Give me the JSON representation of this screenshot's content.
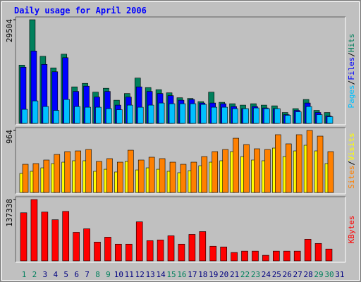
{
  "chart_data": {
    "type": "bar",
    "title": "Daily usage for April 2006",
    "categories": [
      "1",
      "2",
      "3",
      "4",
      "5",
      "6",
      "7",
      "8",
      "9",
      "10",
      "11",
      "12",
      "13",
      "14",
      "15",
      "16",
      "17",
      "18",
      "19",
      "20",
      "21",
      "22",
      "23",
      "24",
      "25",
      "26",
      "27",
      "28",
      "29",
      "30",
      "31"
    ],
    "category_colors": [
      "#00805c",
      "#00805c",
      "#000080",
      "#000080",
      "#000080",
      "#000080",
      "#000080",
      "#00805c",
      "#00805c",
      "#000080",
      "#000080",
      "#000080",
      "#000080",
      "#000080",
      "#00805c",
      "#00805c",
      "#000080",
      "#000080",
      "#000080",
      "#000080",
      "#000080",
      "#00805c",
      "#00805c",
      "#000080",
      "#000080",
      "#000080",
      "#000080",
      "#000080",
      "#00805c",
      "#00805c",
      "#000080"
    ],
    "legend_separator": "/",
    "panels": [
      {
        "ylim": [
          0,
          29504
        ],
        "yticks": [
          29504
        ],
        "series": [
          {
            "name": "Hits",
            "color": "#00805c",
            "values": [
              16600,
              29504,
              19100,
              15800,
              19700,
              10400,
              11400,
              8900,
              10000,
              6600,
              8500,
              12900,
              10200,
              9600,
              8700,
              7300,
              7100,
              6200,
              8900,
              6000,
              5600,
              5200,
              5600,
              5200,
              5000,
              3100,
              4200,
              6800,
              3700,
              3100,
              null
            ]
          },
          {
            "name": "Files",
            "color": "#0000ff",
            "values": [
              16000,
              20600,
              16800,
              14700,
              18700,
              9100,
              10600,
              7500,
              9100,
              5200,
              7500,
              10400,
              9100,
              8500,
              7900,
              6600,
              6800,
              5800,
              5800,
              5600,
              4800,
              4200,
              4800,
              4400,
              4200,
              2500,
              3700,
              5800,
              3100,
              2100,
              null
            ]
          },
          {
            "name": "Pages",
            "color": "#00c0ff",
            "values": [
              4000,
              6400,
              4800,
              3700,
              6800,
              4800,
              4600,
              4600,
              4200,
              3900,
              5200,
              4600,
              5200,
              5800,
              5600,
              5600,
              5600,
              5400,
              4600,
              4600,
              4200,
              4200,
              4400,
              4200,
              4200,
              2300,
              3300,
              4800,
              2500,
              1900,
              null
            ]
          }
        ]
      },
      {
        "ylim": [
          0,
          964
        ],
        "yticks": [
          964
        ],
        "series": [
          {
            "name": "Visits",
            "color": "#ffff00",
            "values": [
              296,
              329,
              383,
              449,
              471,
              493,
              493,
              329,
              361,
              318,
              482,
              350,
              383,
              361,
              329,
              307,
              339,
              416,
              471,
              493,
              635,
              558,
              504,
              493,
              690,
              558,
              646,
              734,
              646,
              449,
              null
            ]
          },
          {
            "name": "Sites",
            "color": "#ff8000",
            "values": [
              438,
              449,
              504,
              591,
              635,
              646,
              668,
              482,
              526,
              471,
              657,
              504,
              548,
              526,
              471,
              438,
              471,
              558,
              635,
              668,
              843,
              745,
              679,
              668,
              898,
              756,
              898,
              964,
              876,
              635,
              null
            ]
          }
        ]
      },
      {
        "ylim": [
          0,
          137338
        ],
        "yticks": [
          137338
        ],
        "series": [
          {
            "name": "KBytes",
            "color": "#ff0000",
            "values": [
              107688,
              137338,
              109249,
              92081,
              110810,
              63989,
              71792,
              42139,
              53064,
              37457,
              37457,
              87399,
              45260,
              46821,
              56185,
              37457,
              59307,
              65549,
              32775,
              31214,
              18728,
              21850,
              21850,
              12486,
              21850,
              21850,
              21850,
              48382,
              39018,
              26532,
              null
            ]
          }
        ]
      }
    ]
  }
}
